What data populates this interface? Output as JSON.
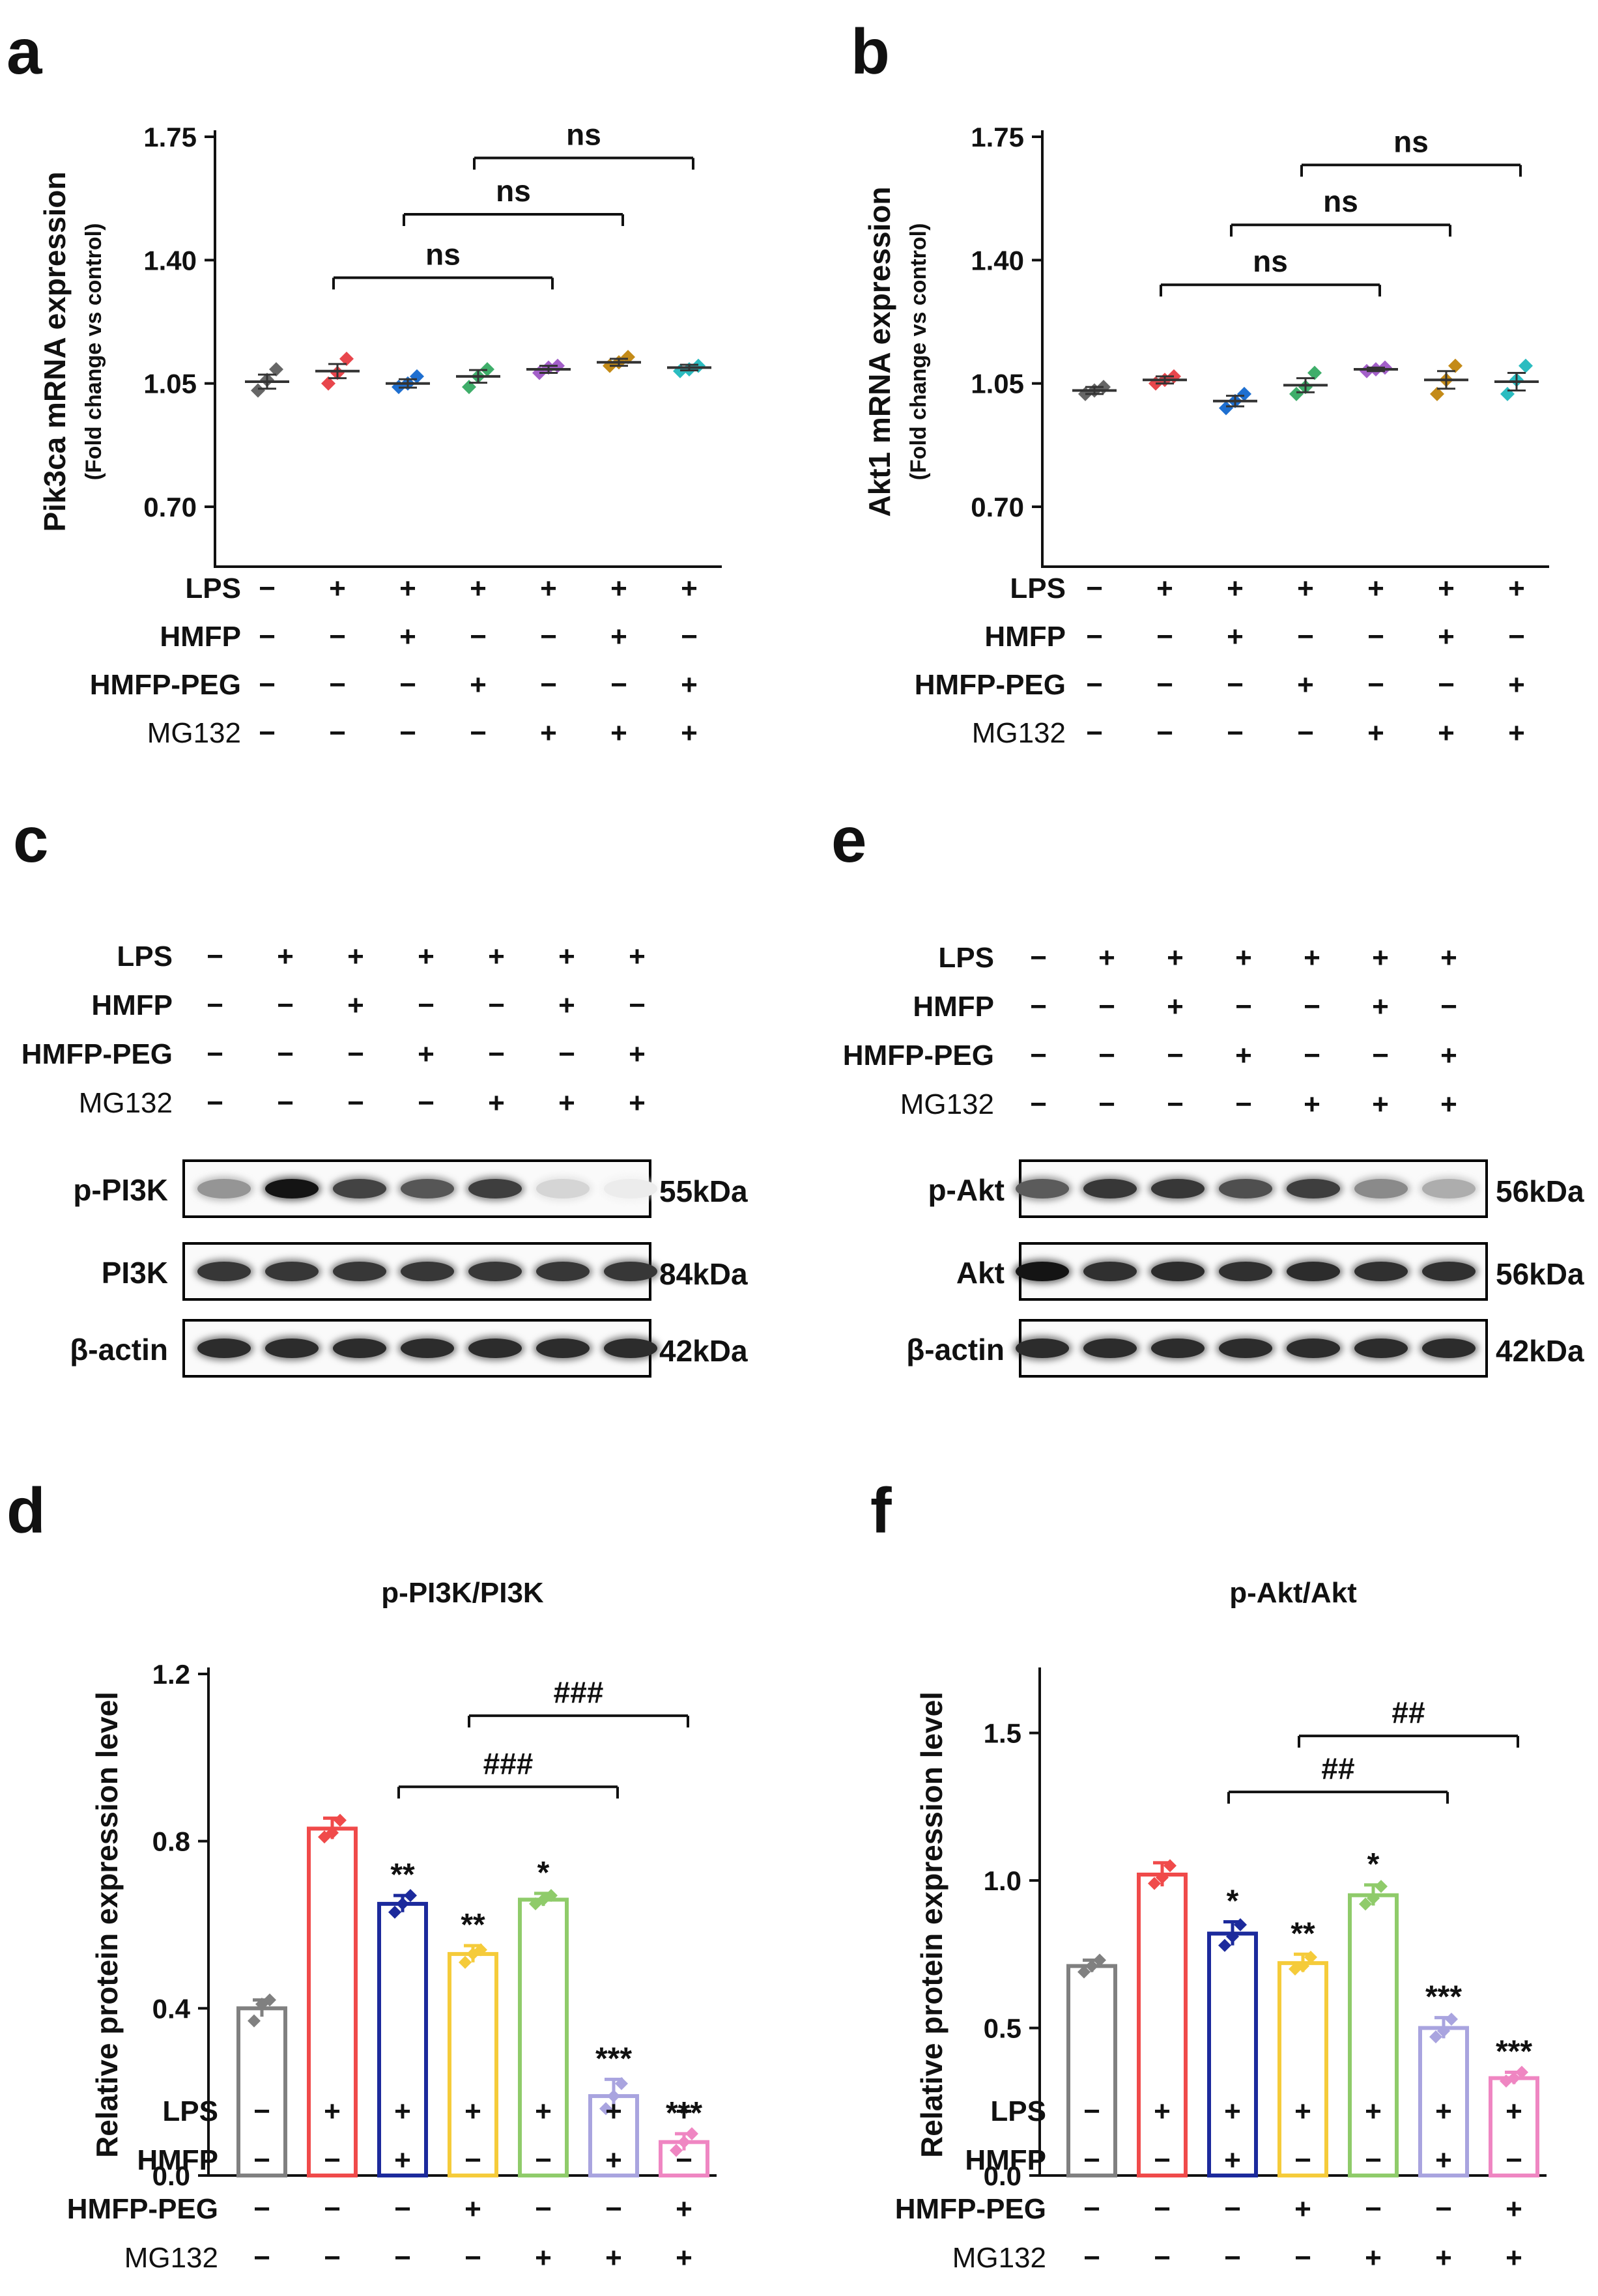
{
  "colors": {
    "group": [
      "#808080",
      "#f04a4a",
      "#1c2a9c",
      "#f5cb3a",
      "#8fcb6a",
      "#a9a4df",
      "#ef86c2"
    ],
    "scatter": [
      "#666666",
      "#e8464c",
      "#1e6fd0",
      "#3fae6a",
      "#a35fc9",
      "#c48b18",
      "#2bbcc0"
    ]
  },
  "conditions": {
    "labels": [
      "LPS",
      "HMFP",
      "HMFP-PEG",
      "MG132"
    ],
    "signs": [
      [
        "−",
        "+",
        "+",
        "+",
        "+",
        "+",
        "+"
      ],
      [
        "−",
        "−",
        "+",
        "−",
        "−",
        "+",
        "−"
      ],
      [
        "−",
        "−",
        "−",
        "+",
        "−",
        "−",
        "+"
      ],
      [
        "−",
        "−",
        "−",
        "−",
        "+",
        "+",
        "+"
      ]
    ]
  },
  "panels": {
    "a": {
      "letter": "a"
    },
    "b": {
      "letter": "b"
    },
    "c": {
      "letter": "c",
      "rows": [
        {
          "label": "p-PI3K",
          "kda": "55kDa",
          "intensity": [
            0.45,
            1.0,
            0.8,
            0.72,
            0.82,
            0.18,
            0.08
          ]
        },
        {
          "label": "PI3K",
          "kda": "84kDa",
          "intensity": [
            0.85,
            0.85,
            0.85,
            0.85,
            0.85,
            0.85,
            0.85
          ]
        },
        {
          "label": "β-actin",
          "kda": "42kDa",
          "intensity": [
            0.9,
            0.9,
            0.9,
            0.9,
            0.9,
            0.9,
            0.9
          ]
        }
      ]
    },
    "d": {
      "letter": "d"
    },
    "e": {
      "letter": "e",
      "rows": [
        {
          "label": "p-Akt",
          "kda": "56kDa",
          "intensity": [
            0.7,
            0.85,
            0.85,
            0.75,
            0.82,
            0.5,
            0.35
          ]
        },
        {
          "label": "Akt",
          "kda": "56kDa",
          "intensity": [
            1.0,
            0.88,
            0.9,
            0.88,
            0.9,
            0.88,
            0.88
          ]
        },
        {
          "label": "β-actin",
          "kda": "42kDa",
          "intensity": [
            0.9,
            0.9,
            0.9,
            0.9,
            0.9,
            0.9,
            0.9
          ]
        }
      ]
    },
    "f": {
      "letter": "f"
    }
  },
  "chart_data": [
    {
      "id": "a",
      "type": "scatter",
      "ylabel": "Pik3ca mRNA expression",
      "ylabel2": "(Fold change vs control)",
      "ylim": [
        0.53,
        1.75
      ],
      "yticks": [
        "0.70",
        "1.05",
        "1.40",
        "1.75"
      ],
      "ytick_values": [
        0.7,
        1.05,
        1.4,
        1.75
      ],
      "means": [
        1.055,
        1.085,
        1.05,
        1.07,
        1.09,
        1.11,
        1.095
      ],
      "points": [
        [
          1.03,
          1.06,
          1.09
        ],
        [
          1.05,
          1.08,
          1.12
        ],
        [
          1.04,
          1.05,
          1.07
        ],
        [
          1.04,
          1.07,
          1.09
        ],
        [
          1.08,
          1.095,
          1.1
        ],
        [
          1.1,
          1.11,
          1.125
        ],
        [
          1.085,
          1.09,
          1.1
        ]
      ],
      "errors": [
        0.02,
        0.02,
        0.012,
        0.018,
        0.01,
        0.01,
        0.008
      ],
      "brackets": [
        {
          "from": 1,
          "to": 4,
          "value": 1.35,
          "label": "ns"
        },
        {
          "from": 2,
          "to": 5,
          "value": 1.53,
          "label": "ns"
        },
        {
          "from": 3,
          "to": 6,
          "value": 1.69,
          "label": "ns"
        }
      ]
    },
    {
      "id": "b",
      "type": "scatter",
      "ylabel": "Akt1 mRNA expression",
      "ylabel2": "(Fold change vs control)",
      "ylim": [
        0.53,
        1.75
      ],
      "yticks": [
        "0.70",
        "1.05",
        "1.40",
        "1.75"
      ],
      "ytick_values": [
        0.7,
        1.05,
        1.4,
        1.75
      ],
      "means": [
        1.03,
        1.06,
        1.0,
        1.045,
        1.09,
        1.06,
        1.055
      ],
      "points": [
        [
          1.02,
          1.03,
          1.04
        ],
        [
          1.05,
          1.06,
          1.07
        ],
        [
          0.98,
          1.0,
          1.02
        ],
        [
          1.02,
          1.04,
          1.08
        ],
        [
          1.085,
          1.09,
          1.095
        ],
        [
          1.02,
          1.06,
          1.1
        ],
        [
          1.02,
          1.06,
          1.1
        ]
      ],
      "errors": [
        0.01,
        0.01,
        0.015,
        0.02,
        0.005,
        0.025,
        0.025
      ],
      "brackets": [
        {
          "from": 1,
          "to": 4,
          "value": 1.33,
          "label": "ns"
        },
        {
          "from": 2,
          "to": 5,
          "value": 1.5,
          "label": "ns"
        },
        {
          "from": 3,
          "to": 6,
          "value": 1.67,
          "label": "ns"
        }
      ]
    },
    {
      "id": "d",
      "type": "bar",
      "title": "p-PI3K/PI3K",
      "ylabel": "Relative protein expression level",
      "ylim": [
        0,
        1.2
      ],
      "yticks": [
        "0.0",
        "0.4",
        "0.8",
        "1.2"
      ],
      "ytick_values": [
        0,
        0.4,
        0.8,
        1.2
      ],
      "values": [
        0.4,
        0.83,
        0.65,
        0.53,
        0.66,
        0.19,
        0.08
      ],
      "errors": [
        0.02,
        0.025,
        0.02,
        0.02,
        0.015,
        0.04,
        0.02
      ],
      "points": [
        [
          0.37,
          0.41,
          0.42
        ],
        [
          0.81,
          0.82,
          0.85
        ],
        [
          0.63,
          0.65,
          0.67
        ],
        [
          0.51,
          0.53,
          0.54
        ],
        [
          0.65,
          0.66,
          0.67
        ],
        [
          0.16,
          0.19,
          0.22
        ],
        [
          0.06,
          0.08,
          0.1
        ]
      ],
      "annotations": [
        "",
        "",
        "**",
        "**",
        "*",
        "***",
        "***"
      ],
      "brackets": [
        {
          "from": 2,
          "to": 5,
          "value": 0.93,
          "label": "###"
        },
        {
          "from": 3,
          "to": 6,
          "value": 1.1,
          "label": "###"
        }
      ]
    },
    {
      "id": "f",
      "type": "bar",
      "title": "p-Akt/Akt",
      "ylabel": "Relative protein expression level",
      "ylim": [
        0,
        1.7
      ],
      "yticks": [
        "0.0",
        "0.5",
        "1.0",
        "1.5"
      ],
      "ytick_values": [
        0,
        0.5,
        1.0,
        1.5
      ],
      "values": [
        0.71,
        1.02,
        0.82,
        0.72,
        0.95,
        0.5,
        0.33
      ],
      "errors": [
        0.02,
        0.04,
        0.04,
        0.03,
        0.035,
        0.035,
        0.02
      ],
      "points": [
        [
          0.69,
          0.71,
          0.73
        ],
        [
          0.99,
          1.01,
          1.05
        ],
        [
          0.78,
          0.81,
          0.85
        ],
        [
          0.7,
          0.71,
          0.74
        ],
        [
          0.92,
          0.94,
          0.98
        ],
        [
          0.47,
          0.49,
          0.53
        ],
        [
          0.32,
          0.33,
          0.35
        ]
      ],
      "annotations": [
        "",
        "",
        "*",
        "**",
        "*",
        "***",
        "***"
      ],
      "brackets": [
        {
          "from": 2,
          "to": 5,
          "value": 1.3,
          "label": "##"
        },
        {
          "from": 3,
          "to": 6,
          "value": 1.49,
          "label": "##"
        }
      ]
    }
  ]
}
